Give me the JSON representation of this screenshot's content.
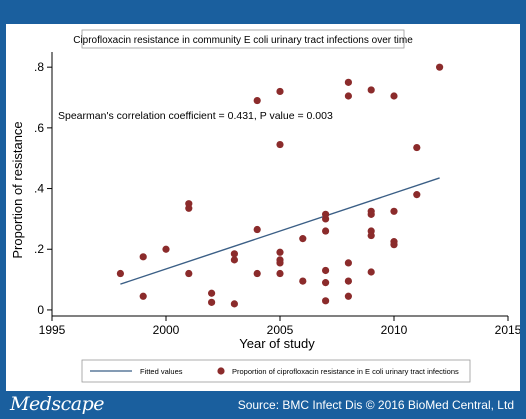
{
  "footer": {
    "brand": "Medscape",
    "source": "Source: BMC Infect Dis © 2016 BioMed Central, Ltd"
  },
  "colors": {
    "frame": "#1a5f9e",
    "point": "#8b2b2b",
    "fit_line": "#3b5f86",
    "plot_bg": "#ffffff",
    "title_bg": "#ffffff"
  },
  "chart_data": {
    "type": "scatter",
    "title": "Ciprofloxacin resistance in community E coli urinary tract infections over time",
    "xlabel": "Year of study",
    "ylabel": "Proportion of resistance",
    "xlim": [
      1995,
      2015
    ],
    "ylim": [
      -0.02,
      0.85
    ],
    "x_ticks": [
      1995,
      2000,
      2005,
      2010,
      2015
    ],
    "x_tick_labels": [
      "1995",
      "2000",
      "2005",
      "2010",
      "2015"
    ],
    "y_ticks": [
      0,
      0.2,
      0.4,
      0.6,
      0.8
    ],
    "y_tick_labels": [
      "0",
      ".2",
      ".4",
      ".6",
      ".8"
    ],
    "grid": false,
    "annotation": "Spearman's correlation coefficient = 0.431, P value = 0.003",
    "legend_position": "bottom",
    "series": [
      {
        "name": "Proportion of ciprofloxacin resistance in E coli urinary tract infections",
        "kind": "points",
        "points": [
          [
            1998,
            0.12
          ],
          [
            1999,
            0.175
          ],
          [
            1999,
            0.045
          ],
          [
            2000,
            0.2
          ],
          [
            2001,
            0.35
          ],
          [
            2001,
            0.335
          ],
          [
            2001,
            0.12
          ],
          [
            2002,
            0.055
          ],
          [
            2002,
            0.025
          ],
          [
            2003,
            0.185
          ],
          [
            2003,
            0.165
          ],
          [
            2003,
            0.02
          ],
          [
            2004,
            0.69
          ],
          [
            2004,
            0.265
          ],
          [
            2004,
            0.12
          ],
          [
            2005,
            0.72
          ],
          [
            2005,
            0.545
          ],
          [
            2005,
            0.19
          ],
          [
            2005,
            0.165
          ],
          [
            2005,
            0.155
          ],
          [
            2005,
            0.12
          ],
          [
            2006,
            0.235
          ],
          [
            2006,
            0.095
          ],
          [
            2007,
            0.315
          ],
          [
            2007,
            0.3
          ],
          [
            2007,
            0.26
          ],
          [
            2007,
            0.13
          ],
          [
            2007,
            0.09
          ],
          [
            2007,
            0.03
          ],
          [
            2008,
            0.75
          ],
          [
            2008,
            0.705
          ],
          [
            2008,
            0.155
          ],
          [
            2008,
            0.095
          ],
          [
            2008,
            0.045
          ],
          [
            2009,
            0.725
          ],
          [
            2009,
            0.325
          ],
          [
            2009,
            0.315
          ],
          [
            2009,
            0.26
          ],
          [
            2009,
            0.245
          ],
          [
            2009,
            0.125
          ],
          [
            2010,
            0.705
          ],
          [
            2010,
            0.325
          ],
          [
            2010,
            0.225
          ],
          [
            2010,
            0.215
          ],
          [
            2011,
            0.535
          ],
          [
            2011,
            0.38
          ],
          [
            2012,
            0.8
          ]
        ]
      },
      {
        "name": "Fitted values",
        "kind": "line",
        "points": [
          [
            1998,
            0.085
          ],
          [
            2012,
            0.435
          ]
        ]
      }
    ]
  }
}
